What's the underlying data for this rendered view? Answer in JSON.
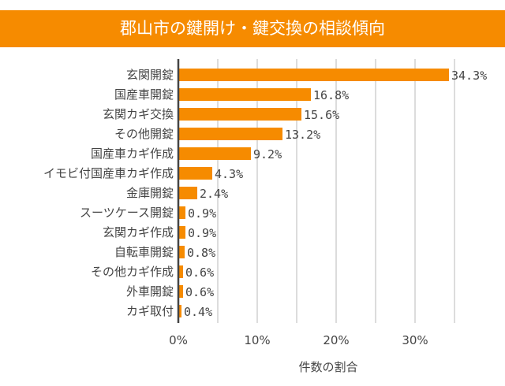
{
  "chart_data": {
    "type": "bar",
    "orientation": "horizontal",
    "title": "郡山市の鍵開け・鍵交換の相談傾向",
    "xlabel": "件数の割合",
    "ylabel": "",
    "categories": [
      "玄関開錠",
      "国産車開錠",
      "玄関カギ交換",
      "その他開錠",
      "国産車カギ作成",
      "イモビ付国産車カギ作成",
      "金庫開錠",
      "スーツケース開錠",
      "玄関カギ作成",
      "自転車開錠",
      "その他カギ作成",
      "外車開錠",
      "カギ取付"
    ],
    "values": [
      34.3,
      16.8,
      15.6,
      13.2,
      9.2,
      4.3,
      2.4,
      0.9,
      0.9,
      0.8,
      0.6,
      0.6,
      0.4
    ],
    "data_labels": [
      "34.3%",
      "16.8%",
      "15.6%",
      "13.2%",
      "9.2%",
      "4.3%",
      "2.4%",
      "0.9%",
      "0.9%",
      "0.8%",
      "0.6%",
      "0.6%",
      "0.4%"
    ],
    "xlim": [
      0,
      35
    ],
    "x_ticks": [
      0,
      10,
      20,
      30
    ],
    "x_tick_labels": [
      "0%",
      "10%",
      "20%",
      "30%"
    ],
    "grid": true,
    "grid_step": 5,
    "bar_color": "#F68B00",
    "title_bg_color": "#F68B00"
  }
}
